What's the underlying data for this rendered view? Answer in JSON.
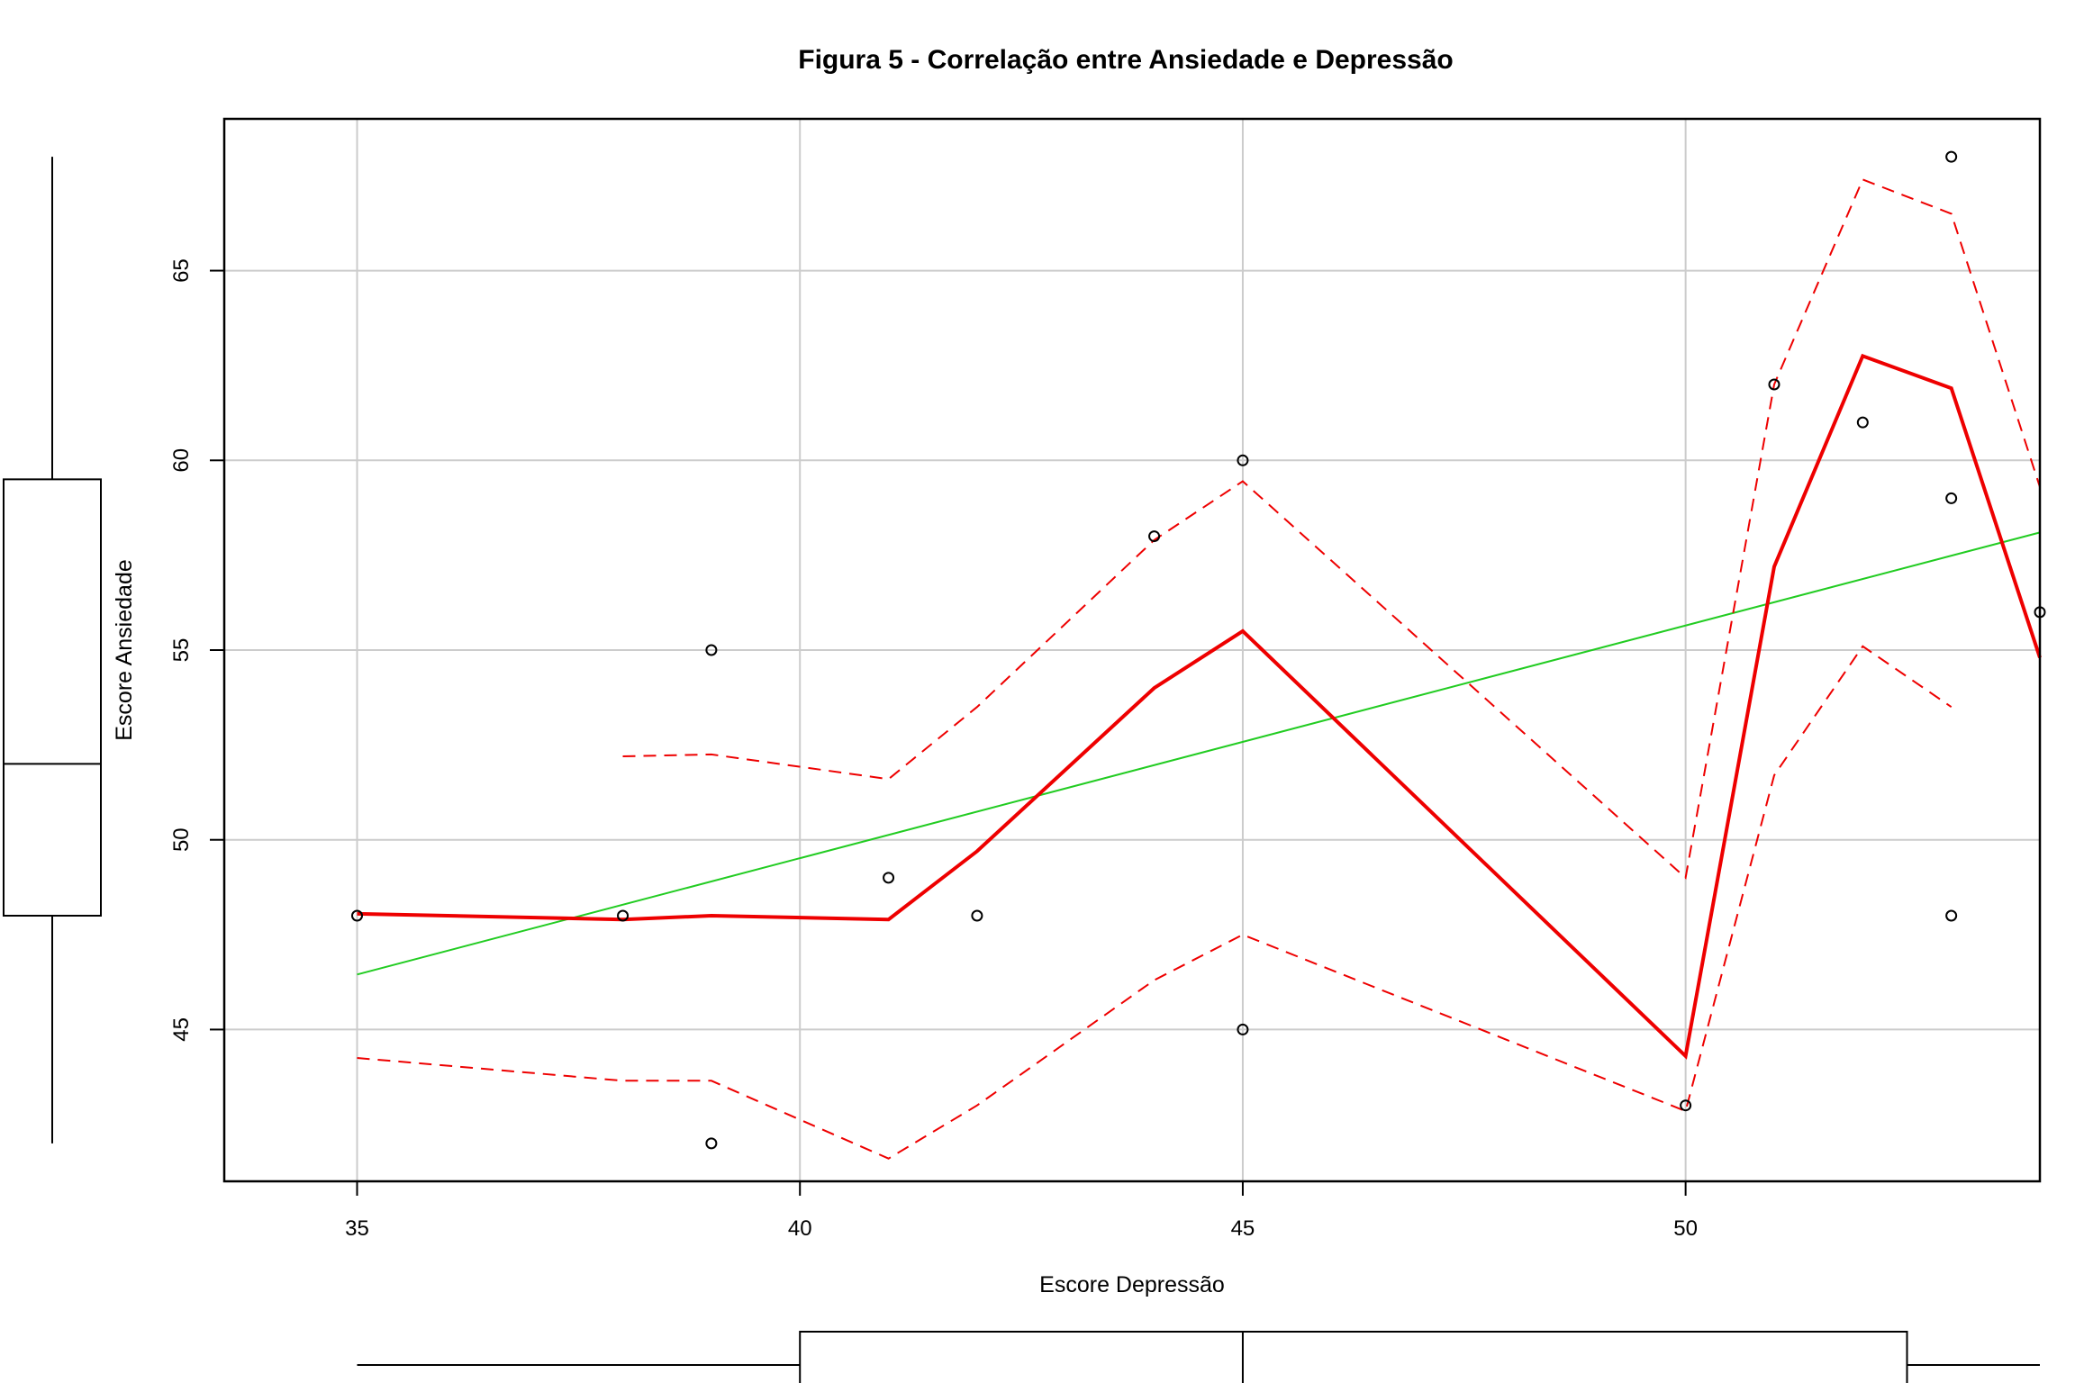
{
  "chart_data": {
    "type": "scatter",
    "title": "Figura 5 - Correlação entre Ansiedade e Depressão",
    "xlabel": "Escore Depressão",
    "ylabel": "Escore Ansiedade",
    "xlim": [
      33.5,
      54.0
    ],
    "ylim": [
      41.0,
      69.0
    ],
    "xticks": [
      35,
      40,
      45,
      50
    ],
    "yticks": [
      45,
      50,
      55,
      60,
      65
    ],
    "xtick_labels": [
      "35",
      "40",
      "45",
      "50"
    ],
    "ytick_labels": [
      "45",
      "50",
      "55",
      "60",
      "65"
    ],
    "grid": true,
    "points": {
      "x": [
        35,
        38,
        39,
        39,
        41,
        42,
        44,
        45,
        45,
        50,
        51,
        52,
        53,
        53,
        53,
        54
      ],
      "y": [
        48,
        48,
        55,
        42,
        49,
        48,
        58,
        60,
        45,
        43,
        62,
        61,
        68,
        59,
        48,
        56
      ]
    },
    "regression_line": {
      "x": [
        35,
        54
      ],
      "y": [
        46.45,
        58.1
      ],
      "color": "#22cc22"
    },
    "smoother": {
      "x": [
        35,
        38,
        39,
        41,
        42,
        44,
        45,
        50,
        51,
        52,
        53,
        54
      ],
      "y": [
        48.05,
        47.9,
        48.0,
        47.9,
        49.7,
        54.0,
        55.5,
        44.3,
        57.2,
        62.75,
        61.9,
        54.8
      ],
      "color": "#ee0000"
    },
    "smoother_upper": {
      "x": [
        38,
        39,
        41,
        42,
        44,
        45,
        50,
        51,
        52,
        53,
        54
      ],
      "y": [
        52.2,
        52.25,
        51.6,
        53.5,
        57.9,
        59.45,
        49.0,
        62.0,
        67.4,
        66.5,
        59.3
      ],
      "color": "#ee0000"
    },
    "smoother_lower": {
      "x": [
        35,
        38,
        39,
        41,
        42,
        44,
        45,
        50,
        51,
        52,
        53
      ],
      "y": [
        44.25,
        43.65,
        43.65,
        41.6,
        43.0,
        46.3,
        47.5,
        42.85,
        51.7,
        55.1,
        53.5
      ],
      "color": "#ee0000"
    },
    "boxplot_x": {
      "min": 35,
      "q1": 40,
      "median": 45,
      "q3": 52.5,
      "max": 54
    },
    "boxplot_y": {
      "min": 42,
      "q1": 48,
      "median": 52,
      "q3": 59.5,
      "max": 68
    }
  }
}
